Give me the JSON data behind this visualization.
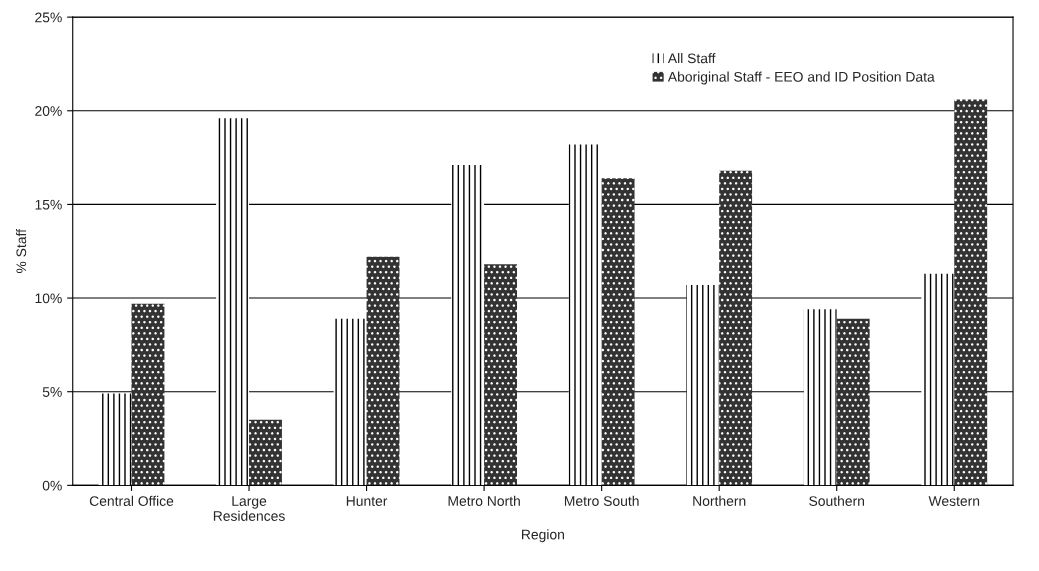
{
  "chart_data": {
    "type": "bar",
    "xlabel": "Region",
    "ylabel": "% Staff",
    "categories": [
      "Central Office",
      "Large\nResidences",
      "Hunter",
      "Metro North",
      "Metro South",
      "Northern",
      "Southern",
      "Western"
    ],
    "series": [
      {
        "name": "All Staff",
        "color": "#ffffff",
        "values": [
          4.9,
          19.6,
          8.9,
          17.1,
          18.2,
          10.7,
          9.4,
          11.3
        ]
      },
      {
        "name": "Aboriginal Staff - EEO and ID Position Data",
        "color": "#333333",
        "values": [
          9.7,
          3.5,
          12.2,
          11.8,
          16.4,
          16.8,
          8.9,
          20.6
        ]
      }
    ],
    "ylim": [
      0,
      25
    ],
    "yticks": [
      {
        "value": 0,
        "label": "0%"
      },
      {
        "value": 5,
        "label": "5%"
      },
      {
        "value": 10,
        "label": "10%"
      },
      {
        "value": 15,
        "label": "15%"
      },
      {
        "value": 20,
        "label": "20%"
      },
      {
        "value": 25,
        "label": "25%"
      }
    ],
    "grid": "y",
    "legend": "top right"
  }
}
